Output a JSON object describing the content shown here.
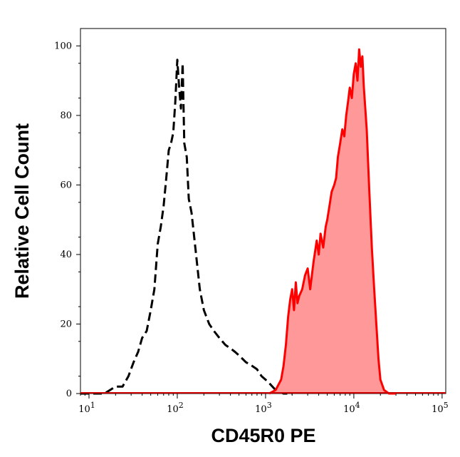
{
  "chart_data": {
    "type": "area",
    "title": "",
    "xlabel": "CD45R0 PE",
    "ylabel": "Relative Cell Count",
    "x_scale": "log",
    "xlim": [
      8,
      110000
    ],
    "ylim": [
      0,
      105
    ],
    "grid": false,
    "legend": "none",
    "y_ticks": [
      {
        "value": 0,
        "label": "0"
      },
      {
        "value": 20,
        "label": "20"
      },
      {
        "value": 40,
        "label": "40"
      },
      {
        "value": 60,
        "label": "60"
      },
      {
        "value": 80,
        "label": "80"
      },
      {
        "value": 100,
        "label": "100"
      }
    ],
    "x_ticks": [
      {
        "value": 10,
        "base": "10",
        "exp": "1"
      },
      {
        "value": 100,
        "base": "10",
        "exp": "2"
      },
      {
        "value": 1000,
        "base": "10",
        "exp": "3"
      },
      {
        "value": 10000,
        "base": "10",
        "exp": "4"
      },
      {
        "value": 100000,
        "base": "10",
        "exp": "5"
      }
    ],
    "series": [
      {
        "style": "dashed",
        "color": "#000000",
        "fill": "none",
        "x": [
          8,
          15,
          20,
          24,
          28,
          32,
          36,
          40,
          45,
          50,
          55,
          60,
          65,
          70,
          75,
          80,
          85,
          90,
          95,
          100,
          105,
          110,
          115,
          120,
          128,
          135,
          145,
          160,
          180,
          200,
          230,
          260,
          300,
          350,
          400,
          450,
          500,
          600,
          700,
          800,
          900,
          1000,
          1100,
          1300,
          1600,
          2000
        ],
        "y": [
          0,
          0,
          2,
          2,
          5,
          9,
          12,
          16,
          18,
          24,
          30,
          43,
          48,
          54,
          62,
          70,
          72,
          75,
          84,
          96,
          88,
          82,
          95,
          72,
          68,
          56,
          52,
          42,
          30,
          24,
          20,
          18,
          16,
          14,
          13,
          12,
          11,
          9,
          8,
          7,
          5,
          4,
          3,
          1,
          0,
          0
        ]
      },
      {
        "style": "solid",
        "color": "#ff0000",
        "fill": "#ff9999",
        "x": [
          1100,
          1300,
          1500,
          1600,
          1700,
          1800,
          1900,
          2000,
          2100,
          2200,
          2300,
          2400,
          2600,
          2800,
          3000,
          3200,
          3500,
          3800,
          4000,
          4200,
          4500,
          4800,
          5000,
          5300,
          5600,
          6000,
          6300,
          6600,
          7000,
          7400,
          7800,
          8200,
          8600,
          9000,
          9500,
          10000,
          10500,
          11000,
          11500,
          12000,
          12500,
          13000,
          14000,
          15000,
          16000,
          17000,
          18000,
          19000,
          20000,
          22000,
          25000,
          30000
        ],
        "y": [
          0,
          1,
          4,
          8,
          14,
          22,
          27,
          30,
          24,
          32,
          26,
          28,
          30,
          34,
          36,
          30,
          38,
          44,
          40,
          46,
          42,
          48,
          50,
          54,
          58,
          60,
          62,
          68,
          72,
          76,
          74,
          80,
          84,
          88,
          85,
          92,
          95,
          90,
          99,
          94,
          97,
          88,
          76,
          58,
          42,
          30,
          20,
          10,
          4,
          1,
          0,
          0
        ]
      }
    ]
  }
}
